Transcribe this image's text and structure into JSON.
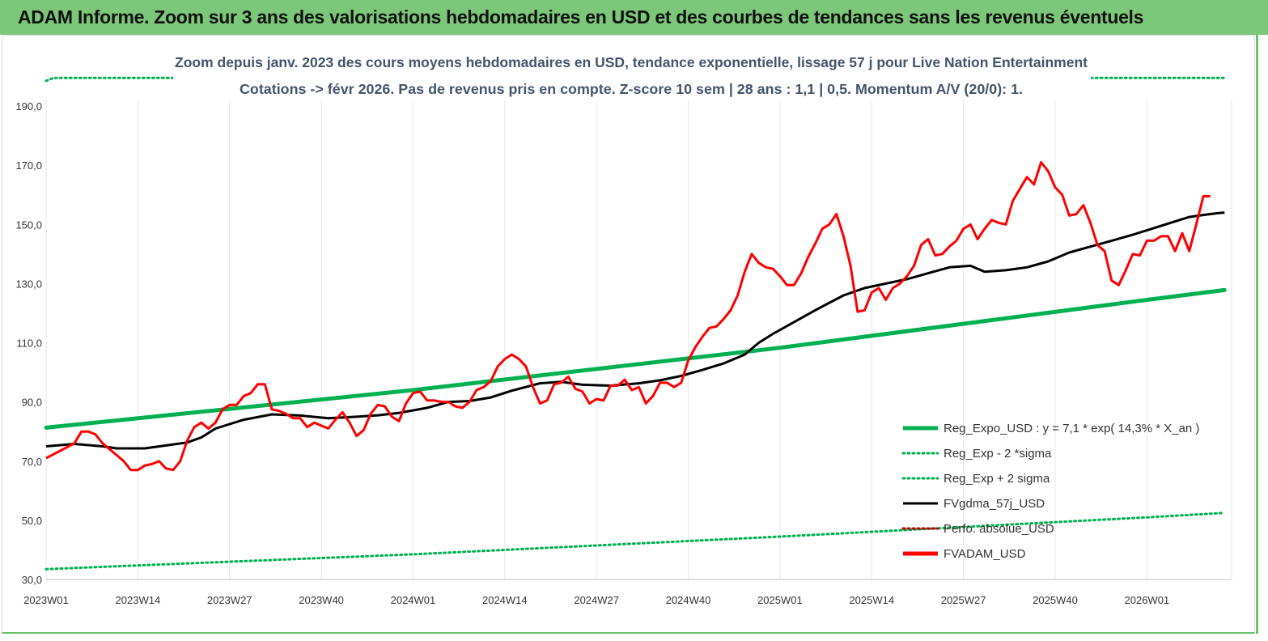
{
  "banner": {
    "title": "ADAM Informe. Zoom sur 3 ans des valorisations hebdomadaires en USD et des courbes de tendances sans les revenus éventuels"
  },
  "colors": {
    "banner_bg": "#7dc77a",
    "trend": "#00b050",
    "band": "#00b050",
    "gdma": "#000000",
    "price": "#ff0000",
    "perfo": "#c00000",
    "subtitle": "#44546a"
  },
  "chart_data": {
    "type": "line",
    "subtitle_line1": "Zoom depuis janv. 2023 des cours moyens hebdomadaires en USD, tendance exponentielle, lissage 57 j pour Live Nation Entertainment",
    "subtitle_line2": "Cotations -> févr 2026. Pas de revenus pris en compte. Z-score 10 sem | 28 ans : 1,1 | 0,5. Momentum A/V (20/0): 1.",
    "ylim": [
      30,
      190
    ],
    "y_ticks": [
      "190,0",
      "170,0",
      "150,0",
      "130,0",
      "110,0",
      "90,0",
      "70,0",
      "50,0",
      "30,0"
    ],
    "y_tick_values": [
      190,
      170,
      150,
      130,
      110,
      90,
      70,
      50,
      30
    ],
    "x_ticks": [
      "2023W01",
      "2023W14",
      "2023W27",
      "2023W40",
      "2024W01",
      "2024W14",
      "2024W27",
      "2024W40",
      "2025W01",
      "2025W14",
      "2025W27",
      "2025W40",
      "2026W01"
    ],
    "x_tick_weeks": [
      0,
      13,
      26,
      39,
      52,
      65,
      78,
      91,
      104,
      117,
      130,
      143,
      156
    ],
    "x_range_weeks": [
      0,
      168
    ],
    "grid": "vertical",
    "legend_position": "bottom-right",
    "series": [
      {
        "name": "Reg_Expo_USD : y = 7,1 * exp( 14,3% * X_an )",
        "style": "solid-thick",
        "color": "#00b050",
        "points": [
          [
            0,
            81.3
          ],
          [
            52,
            94.0
          ],
          [
            104,
            108.3
          ],
          [
            156,
            124.5
          ],
          [
            167,
            127.8
          ]
        ]
      },
      {
        "name": "Reg_Exp - 2 *sigma",
        "style": "dotted",
        "color": "#00b050",
        "points": [
          [
            0,
            33.5
          ],
          [
            52,
            38.5
          ],
          [
            104,
            44.5
          ],
          [
            156,
            51.0
          ],
          [
            167,
            52.5
          ]
        ]
      },
      {
        "name": "Reg_Exp + 2 sigma",
        "style": "dotted",
        "color": "#00b050",
        "points": [
          [
            0,
            198.5
          ],
          [
            1,
            199.5
          ],
          [
            18,
            199.5
          ]
        ],
        "points_right": [
          [
            146,
            199.5
          ],
          [
            167,
            199.5
          ]
        ]
      },
      {
        "name": "FVgdma_57j_USD",
        "style": "solid",
        "color": "#000000",
        "points": [
          [
            0,
            75
          ],
          [
            4,
            75.8
          ],
          [
            8,
            75
          ],
          [
            10,
            74.3
          ],
          [
            14,
            74.3
          ],
          [
            17,
            75.3
          ],
          [
            20,
            76.3
          ],
          [
            22,
            78
          ],
          [
            24,
            81
          ],
          [
            28,
            84
          ],
          [
            32,
            85.8
          ],
          [
            36,
            85.4
          ],
          [
            40,
            84.5
          ],
          [
            44,
            85
          ],
          [
            47,
            85.5
          ],
          [
            50,
            86.3
          ],
          [
            54,
            88
          ],
          [
            57,
            90
          ],
          [
            60,
            90.3
          ],
          [
            63,
            91.5
          ],
          [
            66,
            93.8
          ],
          [
            70,
            96.3
          ],
          [
            73,
            96.8
          ],
          [
            76,
            95.8
          ],
          [
            80,
            95.5
          ],
          [
            84,
            96.3
          ],
          [
            87,
            97.3
          ],
          [
            90,
            98.8
          ],
          [
            93,
            100.8
          ],
          [
            96,
            103
          ],
          [
            99,
            106
          ],
          [
            101,
            110
          ],
          [
            103,
            113
          ],
          [
            106,
            117
          ],
          [
            109,
            121
          ],
          [
            113,
            126
          ],
          [
            116,
            128.5
          ],
          [
            119,
            130
          ],
          [
            122,
            131.5
          ],
          [
            125,
            133.5
          ],
          [
            128,
            135.5
          ],
          [
            131,
            136
          ],
          [
            133,
            134
          ],
          [
            136,
            134.5
          ],
          [
            139,
            135.5
          ],
          [
            142,
            137.5
          ],
          [
            145,
            140.5
          ],
          [
            148,
            142.5
          ],
          [
            151,
            144.5
          ],
          [
            154,
            146.5
          ],
          [
            156,
            148
          ],
          [
            158,
            149.5
          ],
          [
            160,
            151
          ],
          [
            162,
            152.5
          ],
          [
            164,
            153.2
          ],
          [
            166,
            153.8
          ],
          [
            167,
            154
          ]
        ],
        "note": ""
      },
      {
        "name": "Perfo. absolue_USD",
        "style": "dotted",
        "color": "#c00000",
        "points": []
      },
      {
        "name": "FVADAM_USD",
        "style": "solid-thick",
        "color": "#ff0000",
        "points": []
      }
    ]
  }
}
